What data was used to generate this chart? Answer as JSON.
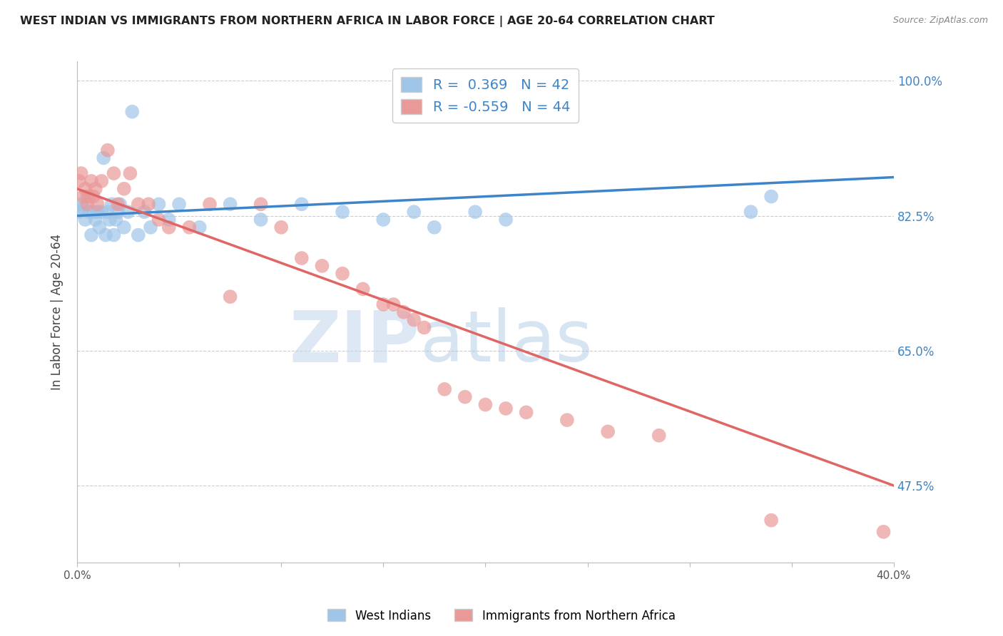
{
  "title": "WEST INDIAN VS IMMIGRANTS FROM NORTHERN AFRICA IN LABOR FORCE | AGE 20-64 CORRELATION CHART",
  "source": "Source: ZipAtlas.com",
  "ylabel": "In Labor Force | Age 20-64",
  "xlim": [
    0.0,
    0.4
  ],
  "ylim": [
    0.375,
    1.025
  ],
  "blue_R": "0.369",
  "blue_N": "42",
  "pink_R": "-0.559",
  "pink_N": "44",
  "blue_color": "#9fc5e8",
  "pink_color": "#ea9999",
  "blue_line_color": "#3d85c8",
  "pink_line_color": "#e06666",
  "watermark_zip": "ZIP",
  "watermark_atlas": "atlas",
  "background_color": "#ffffff",
  "grid_color": "#cccccc",
  "right_yticks": [
    0.475,
    0.65,
    0.825,
    1.0
  ],
  "right_ytick_labels": [
    "47.5%",
    "65.0%",
    "82.5%",
    "100.0%"
  ],
  "xticks": [
    0.0,
    0.05,
    0.1,
    0.15,
    0.2,
    0.25,
    0.3,
    0.35,
    0.4
  ],
  "xtick_labels": [
    "0.0%",
    "",
    "",
    "",
    "",
    "",
    "",
    "",
    "40.0%"
  ],
  "west_indians_x": [
    0.001,
    0.002,
    0.003,
    0.004,
    0.005,
    0.006,
    0.007,
    0.008,
    0.009,
    0.01,
    0.011,
    0.012,
    0.013,
    0.014,
    0.015,
    0.016,
    0.017,
    0.018,
    0.019,
    0.02,
    0.021,
    0.023,
    0.025,
    0.027,
    0.03,
    0.033,
    0.036,
    0.04,
    0.045,
    0.05,
    0.06,
    0.075,
    0.09,
    0.11,
    0.13,
    0.15,
    0.165,
    0.175,
    0.195,
    0.21,
    0.33,
    0.34
  ],
  "west_indians_y": [
    0.83,
    0.84,
    0.835,
    0.82,
    0.85,
    0.83,
    0.8,
    0.83,
    0.82,
    0.83,
    0.81,
    0.83,
    0.9,
    0.8,
    0.83,
    0.82,
    0.84,
    0.8,
    0.82,
    0.83,
    0.84,
    0.81,
    0.83,
    0.96,
    0.8,
    0.83,
    0.81,
    0.84,
    0.82,
    0.84,
    0.81,
    0.84,
    0.82,
    0.84,
    0.83,
    0.82,
    0.83,
    0.81,
    0.83,
    0.82,
    0.83,
    0.85
  ],
  "north_africa_x": [
    0.001,
    0.002,
    0.003,
    0.004,
    0.005,
    0.006,
    0.007,
    0.008,
    0.009,
    0.01,
    0.012,
    0.015,
    0.018,
    0.02,
    0.023,
    0.026,
    0.03,
    0.035,
    0.04,
    0.045,
    0.055,
    0.065,
    0.075,
    0.09,
    0.1,
    0.11,
    0.12,
    0.13,
    0.14,
    0.15,
    0.155,
    0.16,
    0.165,
    0.17,
    0.18,
    0.19,
    0.2,
    0.21,
    0.22,
    0.24,
    0.26,
    0.285,
    0.34,
    0.395
  ],
  "north_africa_y": [
    0.87,
    0.88,
    0.85,
    0.86,
    0.84,
    0.85,
    0.87,
    0.85,
    0.86,
    0.84,
    0.87,
    0.91,
    0.88,
    0.84,
    0.86,
    0.88,
    0.84,
    0.84,
    0.82,
    0.81,
    0.81,
    0.84,
    0.72,
    0.84,
    0.81,
    0.77,
    0.76,
    0.75,
    0.73,
    0.71,
    0.71,
    0.7,
    0.69,
    0.68,
    0.6,
    0.59,
    0.58,
    0.575,
    0.57,
    0.56,
    0.545,
    0.54,
    0.43,
    0.415
  ]
}
